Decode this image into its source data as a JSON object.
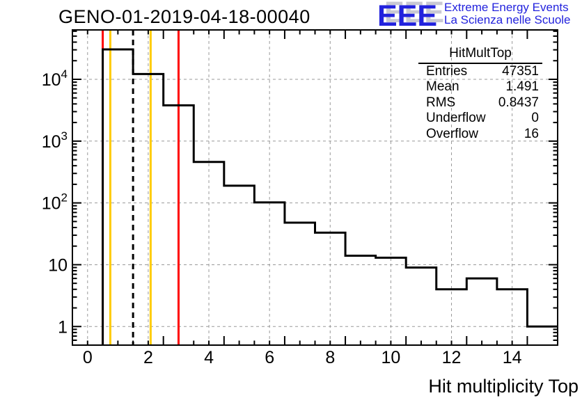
{
  "chart_data": {
    "type": "bar",
    "style": "step-histogram",
    "title": "GENO-01-2019-04-18-00040",
    "xlabel": "Hit multiplicity Top",
    "ylabel": "",
    "ylog": true,
    "bin_width": 1,
    "bin_centers": [
      1,
      2,
      3,
      4,
      5,
      6,
      7,
      8,
      9,
      10,
      11,
      12,
      13,
      14,
      15
    ],
    "values": [
      30500,
      12200,
      3800,
      460,
      190,
      102,
      48,
      33,
      14,
      13,
      9,
      4,
      6,
      4,
      1
    ],
    "xlim": [
      -0.5,
      15.5
    ],
    "ylim": [
      0.5,
      63000
    ],
    "xticks": [
      0,
      2,
      4,
      6,
      8,
      10,
      12,
      14
    ],
    "ytick_labels": [
      "1",
      "10",
      "10^2",
      "10^3",
      "10^4"
    ],
    "grid": "dashed-both",
    "legend_position": "none",
    "marker_lines": [
      {
        "x": 0.5,
        "color": "#ff0000",
        "style": "solid"
      },
      {
        "x": 0.75,
        "color": "#ffcc00",
        "style": "solid"
      },
      {
        "x": 1.5,
        "color": "#000000",
        "style": "dashed"
      },
      {
        "x": 2.08,
        "color": "#ffcc00",
        "style": "solid"
      },
      {
        "x": 3.0,
        "color": "#ff0000",
        "style": "solid"
      }
    ],
    "colors": {
      "histogram": "#000000",
      "grid": "#999999",
      "frame": "#000000",
      "background": "#ffffff"
    }
  },
  "stats_box": {
    "title": "HitMultTop",
    "rows": [
      {
        "label": "Entries",
        "value": "47351"
      },
      {
        "label": "Mean",
        "value": "1.491"
      },
      {
        "label": "RMS",
        "value": "0.8437"
      },
      {
        "label": "Underflow",
        "value": "0"
      },
      {
        "label": "Overflow",
        "value": "16"
      }
    ]
  },
  "logo": {
    "acronym": "EEE",
    "line1": "Extreme Energy Events",
    "line2": "La Scienza nelle Scuole",
    "color": "#2222dd",
    "shadow_color": "#c9c9d3"
  }
}
